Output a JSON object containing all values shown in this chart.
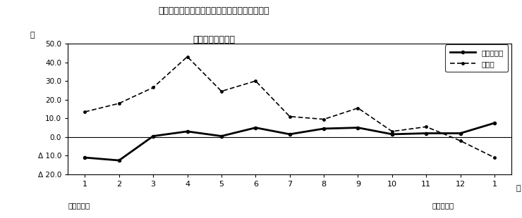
{
  "title_line1": "第２図　所定外労働時間　対前年同月比の推移",
  "title_line2": "（規樯５人以上）",
  "xlabel_months": [
    "1",
    "2",
    "3",
    "4",
    "5",
    "6",
    "7",
    "8",
    "9",
    "10",
    "11",
    "12",
    "1"
  ],
  "xlabel_suffix": "月",
  "year_left": "平成２４年",
  "year_right": "平成２５年",
  "percent_label": "％",
  "legend_solid": "調査産業計",
  "legend_dashed": "製造業",
  "solid_values": [
    -11.0,
    -12.5,
    0.5,
    3.0,
    0.5,
    5.0,
    1.5,
    4.5,
    5.0,
    1.5,
    2.0,
    2.0,
    7.5
  ],
  "dashed_values": [
    13.5,
    18.0,
    26.5,
    43.0,
    24.5,
    30.0,
    11.0,
    9.5,
    15.5,
    3.0,
    5.5,
    -2.0,
    -11.0
  ],
  "ylim": [
    -20.0,
    50.0
  ],
  "yticks": [
    -20.0,
    -10.0,
    0.0,
    10.0,
    20.0,
    30.0,
    40.0,
    50.0
  ],
  "background_color": "#ffffff",
  "line_color": "#000000"
}
